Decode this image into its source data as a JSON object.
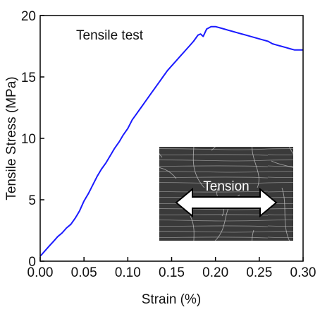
{
  "chart_data": {
    "type": "line",
    "xlabel": "Strain (%)",
    "ylabel": "Tensile Stress (MPa)",
    "xlim": [
      0,
      0.3
    ],
    "ylim": [
      0,
      20
    ],
    "x_ticks": [
      "0.00",
      "0.05",
      "0.10",
      "0.15",
      "0.20",
      "0.25",
      "0.30"
    ],
    "y_ticks": [
      "0",
      "5",
      "10",
      "15",
      "20"
    ],
    "grid": false,
    "annotation": "Tensile test",
    "inset": {
      "label": "Tension",
      "description_icon": "double-arrow-icon"
    },
    "series": [
      {
        "color": "#1a1aff",
        "x": [
          0.0,
          0.005,
          0.01,
          0.015,
          0.02,
          0.025,
          0.03,
          0.035,
          0.04,
          0.045,
          0.05,
          0.055,
          0.06,
          0.065,
          0.07,
          0.075,
          0.08,
          0.085,
          0.09,
          0.095,
          0.1,
          0.105,
          0.11,
          0.115,
          0.12,
          0.125,
          0.13,
          0.135,
          0.14,
          0.145,
          0.15,
          0.155,
          0.16,
          0.165,
          0.17,
          0.175,
          0.18,
          0.183,
          0.186,
          0.19,
          0.195,
          0.2,
          0.205,
          0.21,
          0.215,
          0.22,
          0.225,
          0.23,
          0.235,
          0.24,
          0.245,
          0.25,
          0.255,
          0.26,
          0.265,
          0.27,
          0.275,
          0.28,
          0.285,
          0.29,
          0.295,
          0.3
        ],
        "y": [
          0.4,
          0.8,
          1.2,
          1.6,
          2.0,
          2.3,
          2.7,
          3.0,
          3.5,
          4.1,
          4.9,
          5.5,
          6.2,
          6.9,
          7.5,
          8.0,
          8.6,
          9.2,
          9.7,
          10.3,
          10.8,
          11.5,
          12.0,
          12.5,
          13.0,
          13.5,
          14.0,
          14.5,
          15.0,
          15.5,
          15.9,
          16.3,
          16.7,
          17.1,
          17.5,
          17.9,
          18.4,
          18.5,
          18.3,
          18.9,
          19.1,
          19.1,
          19.0,
          18.9,
          18.8,
          18.7,
          18.6,
          18.5,
          18.4,
          18.3,
          18.2,
          18.1,
          18.0,
          17.9,
          17.7,
          17.6,
          17.5,
          17.4,
          17.3,
          17.2,
          17.2,
          17.2
        ]
      }
    ]
  }
}
